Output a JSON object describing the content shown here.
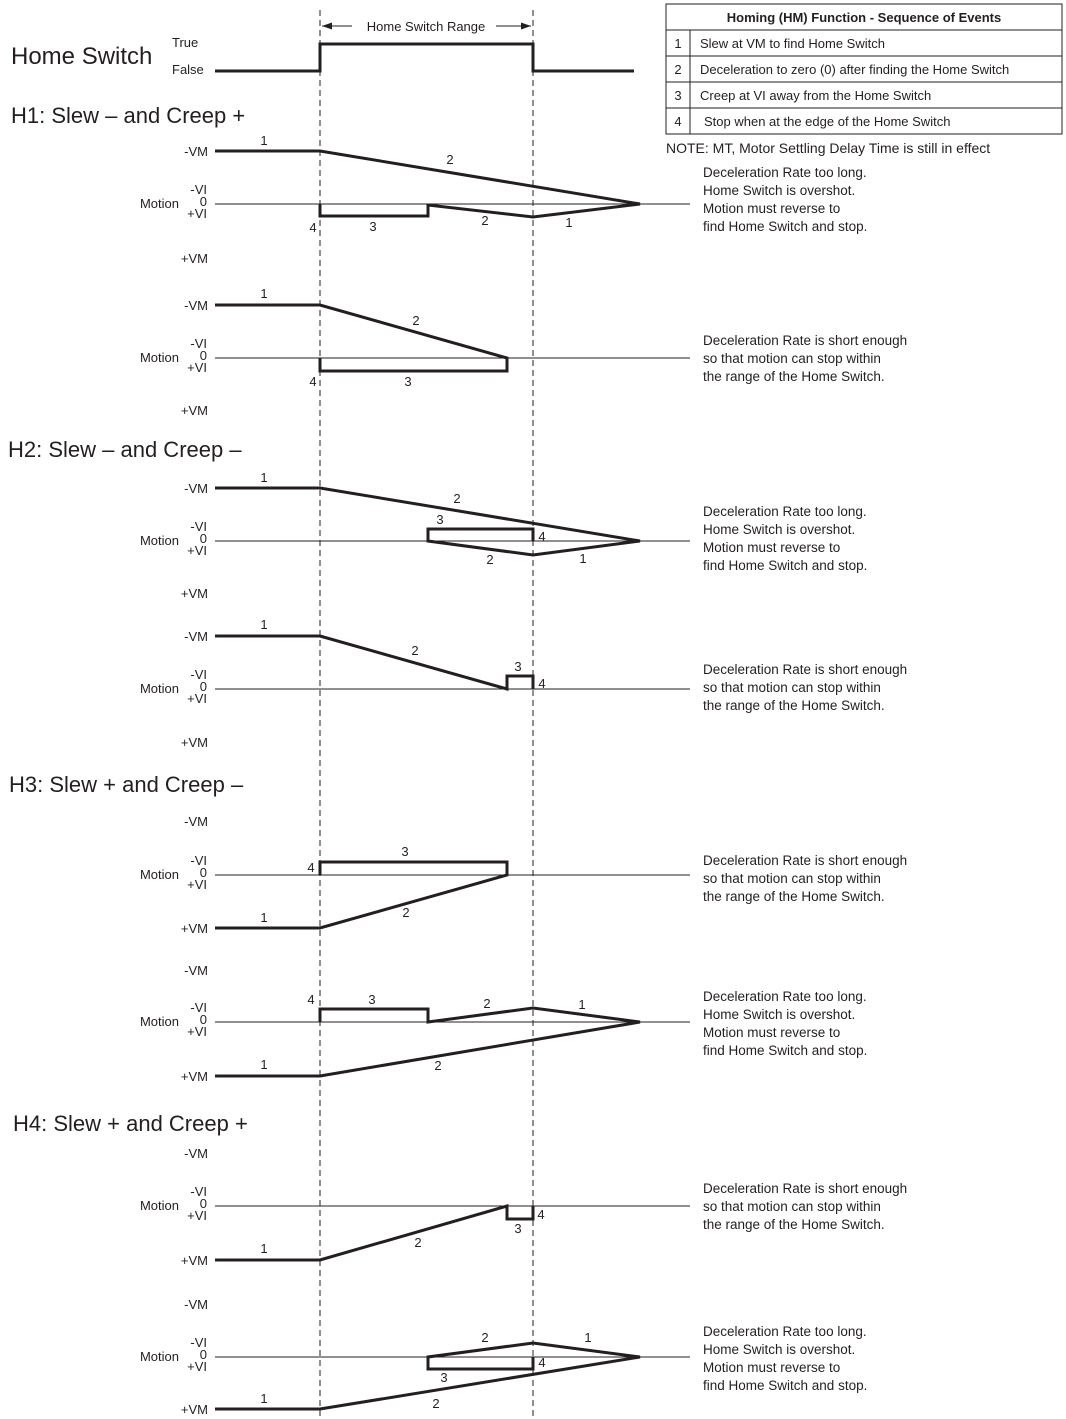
{
  "home_switch": {
    "label": "Home Switch",
    "true_label": "True",
    "false_label": "False",
    "range_label": "Home Switch Range"
  },
  "sequence_table": {
    "title": "Homing (HM) Function - Sequence of Events",
    "rows": [
      {
        "num": "1",
        "text": "Slew at VM to find Home Switch"
      },
      {
        "num": "2",
        "text": "Deceleration to zero (0) after finding the Home Switch"
      },
      {
        "num": "3",
        "text": "Creep at VI away from the Home Switch"
      },
      {
        "num": "4",
        "text": "Stop when at the edge of the Home Switch"
      }
    ],
    "note": "NOTE: MT, Motor Settling Delay Time is still in effect"
  },
  "axis_labels": {
    "neg_vm": "-VM",
    "neg_vi": "-VI",
    "zero": "0",
    "pos_vi": "+VI",
    "pos_vm": "+VM",
    "motion": "Motion"
  },
  "notes": {
    "overshoot": [
      "Deceleration Rate too long.",
      "Home Switch is overshot.",
      "Motion must reverse to",
      "find Home Switch and stop."
    ],
    "within": [
      "Deceleration Rate is short enough",
      "so that motion can stop within",
      "the range of the Home Switch."
    ]
  },
  "sections": [
    {
      "id": "H1",
      "title": "H1: Slew – and Creep +"
    },
    {
      "id": "H2",
      "title": "H2: Slew – and Creep –"
    },
    {
      "id": "H3",
      "title": "H3: Slew + and Creep –"
    },
    {
      "id": "H4",
      "title": "H4: Slew + and Creep +"
    }
  ],
  "plots": [
    {
      "section": 0,
      "case": "overshoot",
      "stop_labels_before_vi": false
    },
    {
      "section": 0,
      "case": "within"
    },
    {
      "section": 1,
      "case": "overshoot"
    },
    {
      "section": 1,
      "case": "within"
    },
    {
      "section": 2,
      "case": "within"
    },
    {
      "section": 2,
      "case": "overshoot"
    },
    {
      "section": 3,
      "case": "within"
    },
    {
      "section": 3,
      "case": "overshoot"
    }
  ]
}
